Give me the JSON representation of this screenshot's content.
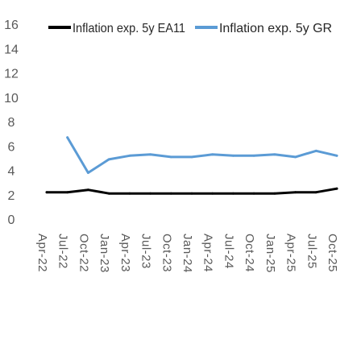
{
  "chart_data": {
    "type": "line",
    "title": "",
    "xlabel": "",
    "ylabel": "",
    "ylim": [
      0,
      16
    ],
    "yticks": [
      "0",
      "2",
      "4",
      "6",
      "8",
      "10",
      "12",
      "14",
      "16"
    ],
    "grid": false,
    "legend_position": "top",
    "x": [
      "Apr-22",
      "Jul-22",
      "Oct-22",
      "Jan-23",
      "Apr-23",
      "Jul-23",
      "Oct-23",
      "Jan-24",
      "Apr-24",
      "Jul-24",
      "Oct-24",
      "Jan-25",
      "Apr-25",
      "Jul-25",
      "Oct-25"
    ],
    "series": [
      {
        "name": "Inflation exp. 5y EA11",
        "color": "#000000",
        "values": [
          2.2,
          2.2,
          2.4,
          2.1,
          2.1,
          2.1,
          2.1,
          2.1,
          2.1,
          2.1,
          2.1,
          2.1,
          2.2,
          2.2,
          2.5
        ]
      },
      {
        "name": "Inflation exp. 5y GR",
        "color": "#5B9BD5",
        "values": [
          null,
          6.7,
          3.8,
          4.9,
          5.2,
          5.3,
          5.1,
          5.1,
          5.3,
          5.2,
          5.2,
          5.3,
          5.1,
          5.6,
          5.2
        ]
      }
    ]
  }
}
